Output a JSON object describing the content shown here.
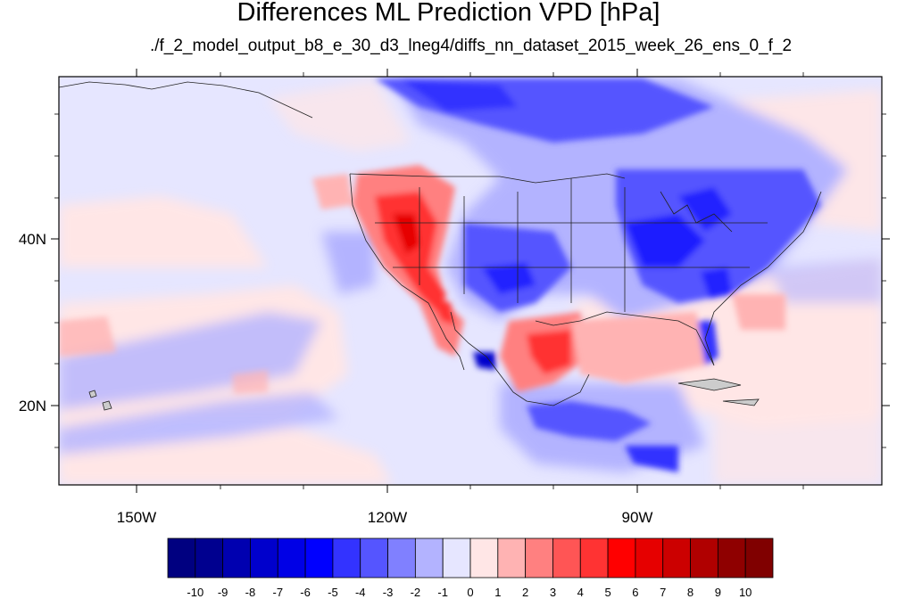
{
  "title": "Differences ML Prediction VPD [hPa]",
  "subtitle": "./f_2_model_output_b8_e_30_d3_lneg4/diffs_nn_dataset_2015_week_26_ens_0_f_2",
  "map": {
    "x_ticks": [
      {
        "value": -150,
        "label": "150W"
      },
      {
        "value": -120,
        "label": "120W"
      },
      {
        "value": -90,
        "label": "90W"
      }
    ],
    "y_ticks": [
      {
        "value": 20,
        "label": "20N"
      },
      {
        "value": 40,
        "label": "40N"
      }
    ]
  },
  "colorbar": {
    "labels": [
      "-10",
      "-9",
      "-8",
      "-7",
      "-6",
      "-5",
      "-4",
      "-3",
      "-2",
      "-1",
      "0",
      "1",
      "2",
      "3",
      "4",
      "5",
      "6",
      "7",
      "8",
      "9",
      "10"
    ],
    "colors": [
      "#000080",
      "#00008f",
      "#0000b0",
      "#0000cc",
      "#0000e6",
      "#0000ff",
      "#3333ff",
      "#5555ff",
      "#8080ff",
      "#b3b3ff",
      "#e6e6ff",
      "#ffe6e6",
      "#ffb3b3",
      "#ff8080",
      "#ff5555",
      "#ff3333",
      "#ff0000",
      "#e60000",
      "#cc0000",
      "#b00000",
      "#8f0000",
      "#800000"
    ]
  }
}
